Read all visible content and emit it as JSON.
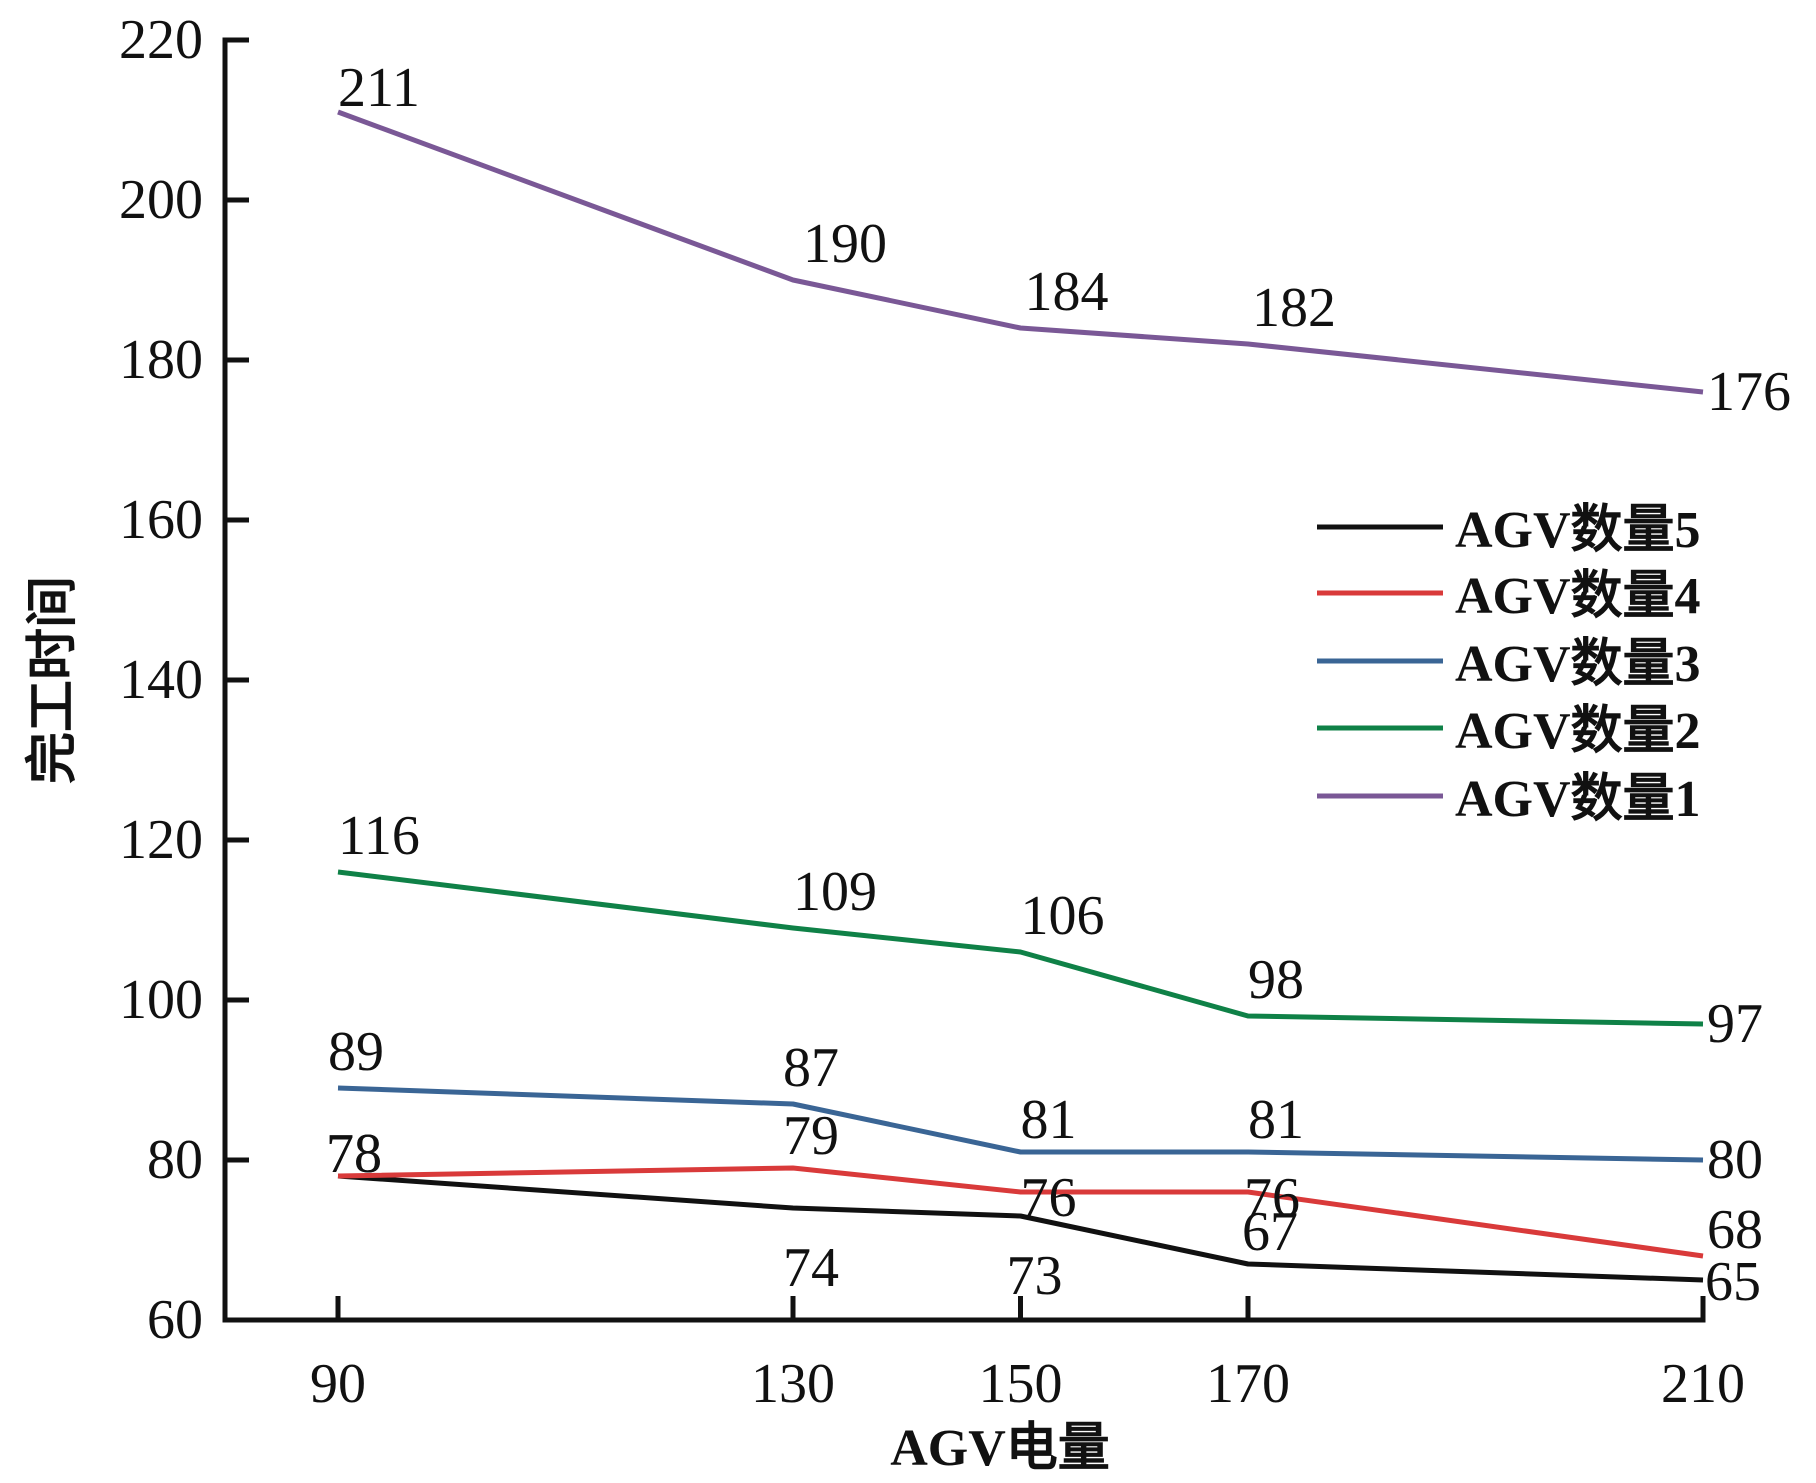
{
  "chart_data": {
    "type": "line",
    "title": "",
    "xlabel": "AGV电量",
    "ylabel": "完工时间",
    "x": [
      90,
      130,
      150,
      170,
      210
    ],
    "x_tick_labels": [
      "90",
      "130",
      "150",
      "170",
      "210"
    ],
    "xlim": [
      80,
      210
    ],
    "ylim": [
      60,
      220
    ],
    "y_ticks": [
      60,
      80,
      100,
      120,
      140,
      160,
      180,
      200,
      220
    ],
    "y_tick_labels": [
      "60",
      "80",
      "100",
      "120",
      "140",
      "160",
      "180",
      "200",
      "220"
    ],
    "grid": false,
    "legend_position": "right",
    "series": [
      {
        "name": "AGV数量5",
        "color": "#111111",
        "values": [
          78,
          74,
          73,
          67,
          65
        ]
      },
      {
        "name": "AGV数量4",
        "color": "#d93a3a",
        "values": [
          78,
          79,
          76,
          76,
          68
        ]
      },
      {
        "name": "AGV数量3",
        "color": "#3a6595",
        "values": [
          89,
          87,
          81,
          81,
          80
        ]
      },
      {
        "name": "AGV数量2",
        "color": "#0f8147",
        "values": [
          116,
          109,
          106,
          98,
          97
        ]
      },
      {
        "name": "AGV数量1",
        "color": "#7a5896",
        "values": [
          211,
          190,
          184,
          182,
          176
        ]
      }
    ]
  }
}
